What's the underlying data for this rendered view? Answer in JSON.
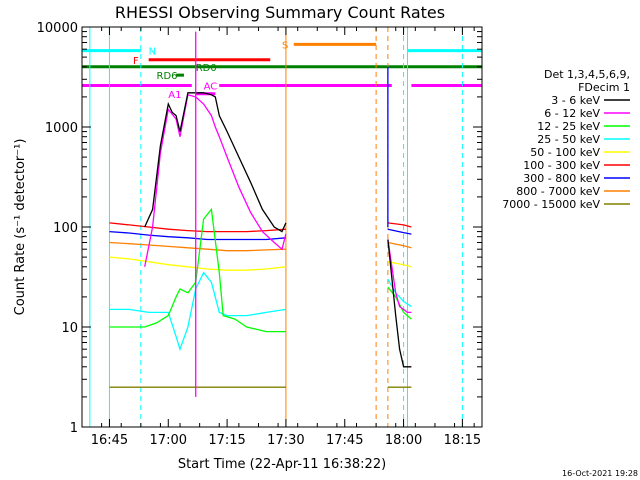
{
  "chart_data": {
    "type": "line",
    "title": "RHESSI Observing Summary Count Rates",
    "xlabel": "Start Time (22-Apr-11 16:38:22)",
    "ylabel": "Count Rate (s⁻¹ detector⁻¹)",
    "y_scale": "log",
    "ylim": [
      1,
      10000
    ],
    "xlim": [
      "16:38",
      "18:20"
    ],
    "x_ticks": [
      "16:45",
      "17:00",
      "17:15",
      "17:30",
      "17:45",
      "18:00",
      "18:15"
    ],
    "y_ticks": [
      "1",
      "10",
      "100",
      "1000",
      "10000"
    ],
    "legend": {
      "placement": "right",
      "header": [
        "Det 1,3,4,5,6,9,",
        "FDecim 1"
      ],
      "entries": [
        {
          "label": "3 - 6 keV",
          "color": "#000000"
        },
        {
          "label": "6 - 12 keV",
          "color": "#ff00ff"
        },
        {
          "label": "12 - 25 keV",
          "color": "#00ff00"
        },
        {
          "label": "25 - 50 keV",
          "color": "#00ffff"
        },
        {
          "label": "50 - 100 keV",
          "color": "#ffff00"
        },
        {
          "label": "100 - 300 keV",
          "color": "#ff0000"
        },
        {
          "label": "300 - 800 keV",
          "color": "#0000ff"
        },
        {
          "label": "800 - 7000 keV",
          "color": "#ff8000"
        },
        {
          "label": "7000 - 15000 keV",
          "color": "#808000"
        }
      ]
    },
    "series": [
      {
        "name": "3 - 6 keV",
        "color": "#000000",
        "segments": [
          {
            "x": [
              "16:54",
              "16:56",
              "16:58",
              "17:00",
              "17:01",
              "17:02",
              "17:03",
              "17:05",
              "17:07",
              "17:09",
              "17:11",
              "17:12",
              "17:13",
              "17:15",
              "17:18",
              "17:21",
              "17:24",
              "17:27",
              "17:29",
              "17:30"
            ],
            "y": [
              100,
              150,
              650,
              1700,
              1400,
              1300,
              900,
              2200,
              2200,
              2200,
              2100,
              2000,
              1300,
              900,
              500,
              280,
              150,
              100,
              90,
              110
            ]
          },
          {
            "x": [
              "17:56",
              "17:58",
              "17:59",
              "18:00",
              "18:01",
              "18:02"
            ],
            "y": [
              75,
              13,
              6,
              4,
              4,
              4
            ]
          }
        ]
      },
      {
        "name": "6 - 12 keV",
        "color": "#ff00ff",
        "segments": [
          {
            "x": [
              "16:54",
              "16:56",
              "16:58",
              "17:00",
              "17:02",
              "17:03",
              "17:05",
              "17:07",
              "17:09",
              "17:11",
              "17:12",
              "17:13",
              "17:15",
              "17:18",
              "17:21",
              "17:24",
              "17:27",
              "17:29",
              "17:30"
            ],
            "y": [
              40,
              100,
              550,
              1500,
              1200,
              800,
              2100,
              2000,
              1700,
              1300,
              1000,
              800,
              500,
              250,
              140,
              90,
              70,
              60,
              85
            ]
          },
          {
            "x": [
              "17:56",
              "17:58",
              "17:59",
              "18:00",
              "18:01",
              "18:02"
            ],
            "y": [
              75,
              22,
              16,
              15,
              14,
              14
            ]
          }
        ]
      },
      {
        "name": "12 - 25 keV",
        "color": "#00ff00",
        "segments": [
          {
            "x": [
              "16:45",
              "16:48",
              "16:50",
              "16:54",
              "16:57",
              "17:00",
              "17:02",
              "17:03",
              "17:05",
              "17:07",
              "17:09",
              "17:11",
              "17:13",
              "17:14",
              "17:17",
              "17:20",
              "17:25",
              "17:30"
            ],
            "y": [
              10,
              10,
              10,
              10,
              11,
              13,
              20,
              24,
              22,
              28,
              120,
              150,
              35,
              13,
              12,
              10,
              9,
              9
            ]
          },
          {
            "x": [
              "17:56",
              "17:58",
              "18:00",
              "18:02"
            ],
            "y": [
              25,
              20,
              14,
              12
            ]
          }
        ]
      },
      {
        "name": "25 - 50 keV",
        "color": "#00ffff",
        "segments": [
          {
            "x": [
              "16:45",
              "16:50",
              "16:55",
              "17:00",
              "17:02",
              "17:03",
              "17:05",
              "17:07",
              "17:09",
              "17:11",
              "17:13",
              "17:15",
              "17:20",
              "17:25",
              "17:30"
            ],
            "y": [
              15,
              15,
              14,
              14,
              8,
              6,
              10,
              24,
              35,
              28,
              14,
              13,
              13,
              14,
              15
            ]
          },
          {
            "x": [
              "17:56",
              "17:58",
              "18:00",
              "18:02"
            ],
            "y": [
              30,
              22,
              18,
              16
            ]
          }
        ]
      },
      {
        "name": "50 - 100 keV",
        "color": "#ffff00",
        "segments": [
          {
            "x": [
              "16:45",
              "16:50",
              "16:55",
              "17:00",
              "17:05",
              "17:10",
              "17:15",
              "17:20",
              "17:25",
              "17:30"
            ],
            "y": [
              50,
              48,
              45,
              42,
              40,
              38,
              37,
              37,
              38,
              40
            ]
          },
          {
            "x": [
              "17:56",
              "18:00",
              "18:02"
            ],
            "y": [
              45,
              42,
              40
            ]
          }
        ]
      },
      {
        "name": "100 - 300 keV",
        "color": "#ff0000",
        "segments": [
          {
            "x": [
              "16:45",
              "16:50",
              "16:55",
              "17:00",
              "17:05",
              "17:10",
              "17:15",
              "17:20",
              "17:25",
              "17:30"
            ],
            "y": [
              110,
              105,
              100,
              95,
              92,
              90,
              90,
              90,
              92,
              95
            ]
          },
          {
            "x": [
              "17:56",
              "18:00",
              "18:02"
            ],
            "y": [
              110,
              105,
              100
            ]
          }
        ]
      },
      {
        "name": "300 - 800 keV",
        "color": "#0000ff",
        "segments": [
          {
            "x": [
              "16:45",
              "16:50",
              "16:55",
              "17:00",
              "17:05",
              "17:10",
              "17:15",
              "17:20",
              "17:25",
              "17:30"
            ],
            "y": [
              90,
              87,
              83,
              80,
              78,
              75,
              75,
              75,
              75,
              78
            ]
          },
          {
            "x": [
              "17:56",
              "18:00",
              "18:02"
            ],
            "y": [
              95,
              88,
              85
            ]
          }
        ]
      },
      {
        "name": "800 - 7000 keV",
        "color": "#ff8000",
        "segments": [
          {
            "x": [
              "16:45",
              "16:50",
              "16:55",
              "17:00",
              "17:05",
              "17:10",
              "17:15",
              "17:20",
              "17:25",
              "17:30"
            ],
            "y": [
              70,
              68,
              66,
              64,
              62,
              60,
              58,
              58,
              59,
              60
            ]
          },
          {
            "x": [
              "17:56",
              "18:00",
              "18:02"
            ],
            "y": [
              70,
              65,
              62
            ]
          }
        ]
      },
      {
        "name": "7000 - 15000 keV",
        "color": "#808000",
        "segments": [
          {
            "x": [
              "16:45",
              "16:50",
              "16:55",
              "17:00",
              "17:05",
              "17:10",
              "17:15",
              "17:20",
              "17:25",
              "17:30"
            ],
            "y": [
              2.5,
              2.5,
              2.5,
              2.5,
              2.5,
              2.5,
              2.5,
              2.5,
              2.5,
              2.5
            ]
          },
          {
            "x": [
              "17:56",
              "18:00",
              "18:02"
            ],
            "y": [
              2.5,
              2.5,
              2.5
            ]
          }
        ]
      }
    ],
    "spikes": [
      {
        "x": "17:07",
        "y_from": 2,
        "y_to": 9000,
        "color": "#ff00ff"
      },
      {
        "x": "17:56",
        "y_from": 100,
        "y_to": 4000,
        "color": "#0000ff"
      }
    ],
    "vertical_lines": [
      {
        "x": "16:40",
        "color": "#00ffff",
        "style": "solid"
      },
      {
        "x": "16:45",
        "color": "#00ffff",
        "style": "solid"
      },
      {
        "x": "16:53",
        "color": "#00ffff",
        "style": "dashed"
      },
      {
        "x": "17:30",
        "color": "#ff8000",
        "style": "solid"
      },
      {
        "x": "17:53",
        "color": "#ff8000",
        "style": "dashed"
      },
      {
        "x": "17:56",
        "color": "#ff8000",
        "style": "dashed"
      },
      {
        "x": "18:00",
        "color": "#00ffff",
        "style": "dashed"
      },
      {
        "x": "18:01",
        "color": "#00ffff",
        "style": "solid"
      },
      {
        "x": "18:15",
        "color": "#00ffff",
        "style": "dashed"
      }
    ],
    "flag_bars": [
      {
        "label": "N",
        "color": "#00ffff",
        "y": 5800,
        "ranges": [
          [
            "16:38",
            "16:53"
          ],
          [
            "18:01",
            "18:20"
          ]
        ],
        "label_at": "16:55"
      },
      {
        "label": "S",
        "color": "#ff8000",
        "y": 6700,
        "ranges": [
          [
            "17:32",
            "17:53"
          ]
        ],
        "label_at": "17:29"
      },
      {
        "label": "F",
        "color": "#ff0000",
        "y": 4700,
        "ranges": [
          [
            "16:55",
            "17:26"
          ]
        ],
        "label_at": "16:51"
      },
      {
        "label": "RD0",
        "color": "#008000",
        "y": 4000,
        "ranges": [
          [
            "16:38",
            "18:20"
          ]
        ],
        "label_at": "17:07"
      },
      {
        "label": "RD6",
        "color": "#008000",
        "y": 3300,
        "ranges": [
          [
            "17:02",
            "17:04"
          ]
        ],
        "label_at": "16:57"
      },
      {
        "label": "AC",
        "color": "#ff00ff",
        "y": 2600,
        "ranges": [
          [
            "16:38",
            "17:06"
          ],
          [
            "17:13",
            "17:57"
          ],
          [
            "18:02",
            "18:20"
          ]
        ],
        "label_at": "17:09"
      },
      {
        "label": "A1",
        "color": "#ff00ff",
        "y": 2150,
        "ranges": [
          [
            "17:07",
            "17:12"
          ]
        ],
        "label_at": "17:00"
      }
    ],
    "timestamp": "16-Oct-2021 19:28"
  }
}
